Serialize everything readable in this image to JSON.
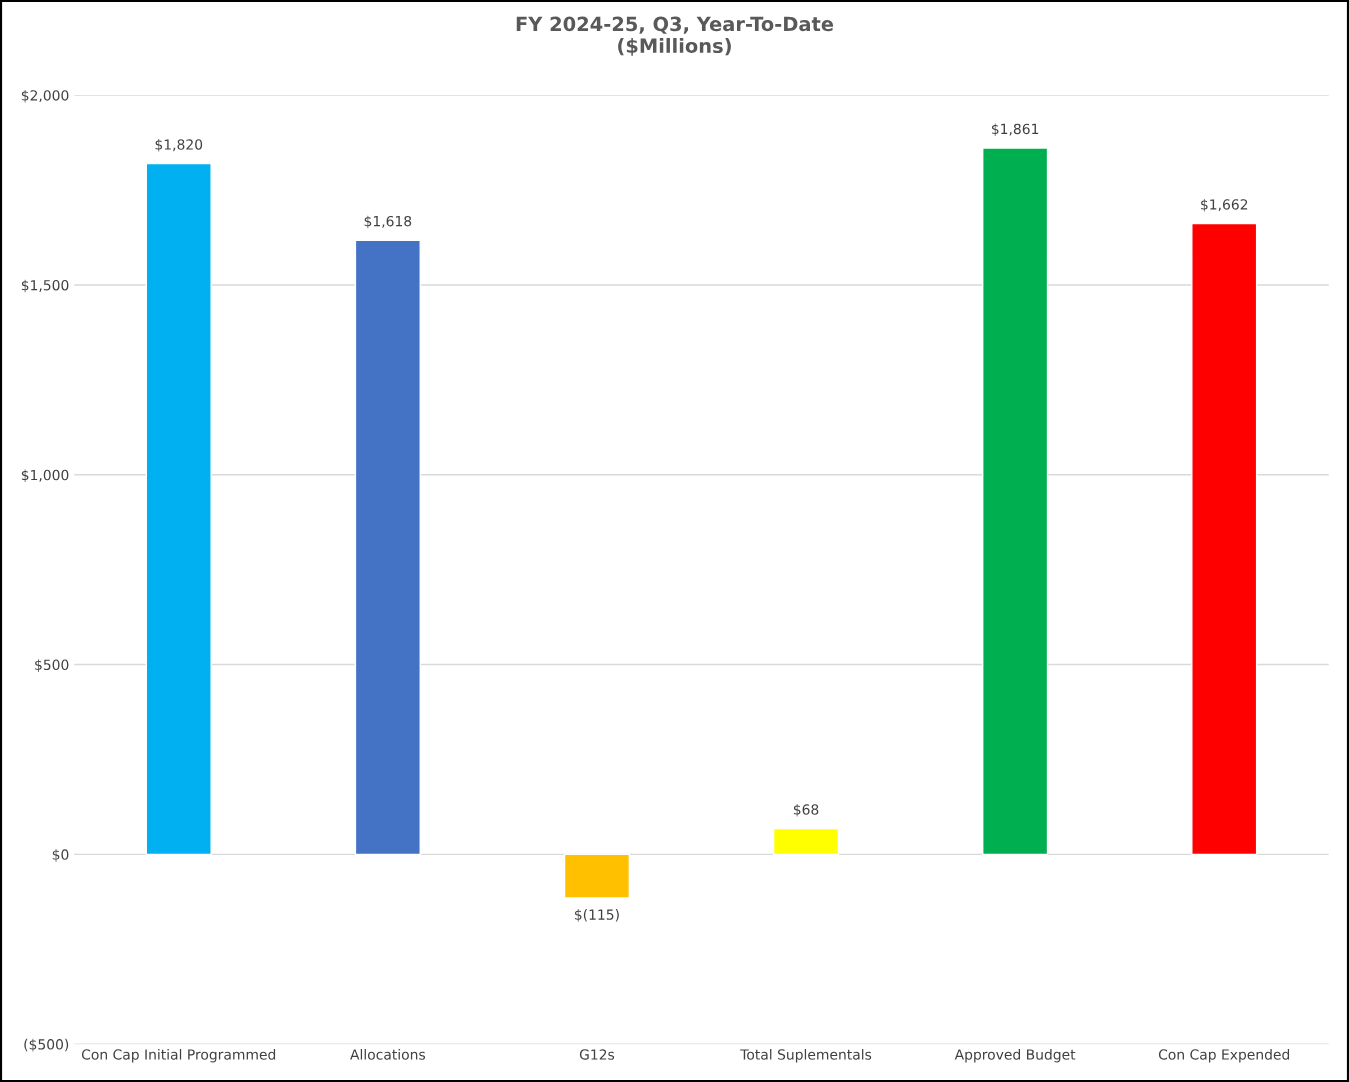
{
  "chart_data": {
    "type": "bar",
    "title": "FY 2024-25, Q3, Year-To-Date\n($Millions)",
    "categories": [
      "Con Cap Initial Programmed",
      "Allocations",
      "G12s",
      "Total Suplementals",
      "Approved Budget",
      "Con Cap Expended"
    ],
    "values": [
      1820,
      1618,
      -115,
      68,
      1861,
      1662
    ],
    "colors": [
      "#00b0f0",
      "#4472c4",
      "#ffc000",
      "#ffff00",
      "#00b050",
      "#ff0000"
    ],
    "value_labels": [
      "$1,820",
      "$1,618",
      "$(115)",
      "$68",
      "$1,861",
      "$1,662"
    ],
    "ylim": [
      -500,
      2000
    ],
    "yticks": [
      {
        "value": -500,
        "label": "($500)"
      },
      {
        "value": 0,
        "label": "$0"
      },
      {
        "value": 500,
        "label": "$500"
      },
      {
        "value": 1000,
        "label": "$1,000"
      },
      {
        "value": 1500,
        "label": "$1,500"
      },
      {
        "value": 2000,
        "label": "$2,000"
      }
    ],
    "grid": "y",
    "legend": false
  }
}
